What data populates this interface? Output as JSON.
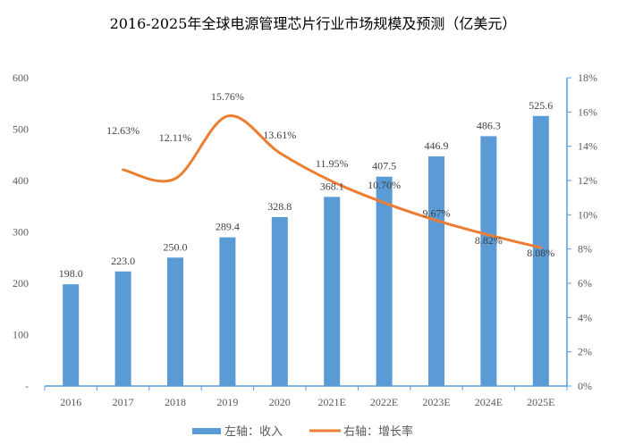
{
  "chart_data": {
    "type": "bar+line",
    "title": "2016-2025年全球电源管理芯片行业市场规模及预测（亿美元）",
    "categories": [
      "2016",
      "2017",
      "2018",
      "2019",
      "2020",
      "2021E",
      "2022E",
      "2023E",
      "2024E",
      "2025E"
    ],
    "series": [
      {
        "name": "左轴：收入",
        "type": "bar",
        "axis": "left",
        "color": "#5B9BD5",
        "values": [
          198.0,
          223.0,
          250.0,
          289.4,
          328.8,
          368.1,
          407.5,
          446.9,
          486.3,
          525.6
        ],
        "labels": [
          "198.0",
          "223.0",
          "250.0",
          "289.4",
          "328.8",
          "368.1",
          "407.5",
          "446.9",
          "486.3",
          "525.6"
        ]
      },
      {
        "name": "右轴：增长率",
        "type": "line",
        "axis": "right",
        "color": "#ED7D31",
        "values": [
          null,
          12.63,
          12.11,
          15.76,
          13.61,
          11.95,
          10.7,
          9.67,
          8.82,
          8.08
        ],
        "labels": [
          null,
          "12.63%",
          "12.11%",
          "15.76%",
          "13.61%",
          "11.95%",
          "10.70%",
          "9.67%",
          "8.82%",
          "8.08%"
        ]
      }
    ],
    "left_axis": {
      "ylim": [
        0,
        600
      ],
      "ticks": [
        "-",
        "100",
        "200",
        "300",
        "400",
        "500",
        "600"
      ]
    },
    "right_axis": {
      "ylim": [
        0,
        18
      ],
      "ticks": [
        "0%",
        "2%",
        "4%",
        "6%",
        "8%",
        "10%",
        "12%",
        "14%",
        "16%",
        "18%"
      ]
    },
    "legend_position": "bottom",
    "grid": false
  }
}
